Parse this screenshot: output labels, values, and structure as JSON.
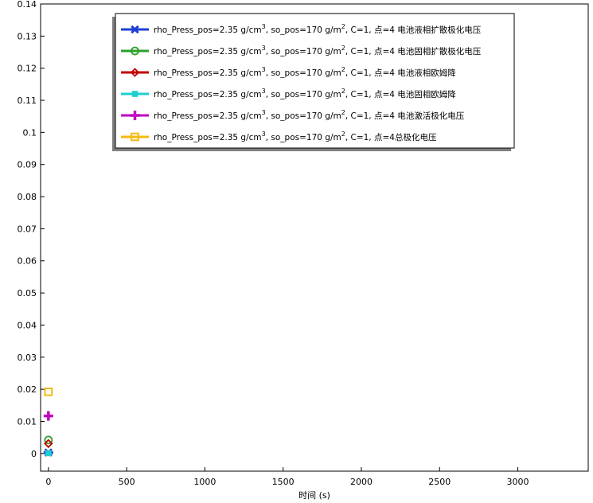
{
  "chart_data": {
    "type": "scatter",
    "title": "",
    "xlabel": "时间 (s)",
    "ylabel": "",
    "xlim": [
      -50,
      3450
    ],
    "ylim": [
      -0.0055,
      0.14
    ],
    "x_ticks": [
      0,
      500,
      1000,
      1500,
      2000,
      2500,
      3000
    ],
    "y_ticks": [
      0,
      0.01,
      0.02,
      0.03,
      0.04,
      0.05,
      0.06,
      0.07,
      0.08,
      0.09,
      0.1,
      0.11,
      0.12,
      0.13,
      0.14
    ],
    "grid": false,
    "legend_position": "top-center",
    "legend_prefix": "rho_Press_pos=2.35 g/cm",
    "legend_mid": ", so_pos=170 g/m",
    "series": [
      {
        "name": "C=1, 点=4 电池液相扩散极化电压",
        "color": "#1f3fd1",
        "marker": "asterisk",
        "points": [
          [
            0,
            0.0003
          ]
        ]
      },
      {
        "name": "C=1, 点=4 电池固相扩散极化电压",
        "color": "#2ca02c",
        "marker": "circle",
        "points": [
          [
            0,
            0.0042
          ]
        ]
      },
      {
        "name": "C=1, 点=4 电池液相欧姆降",
        "color": "#c00000",
        "marker": "diamond",
        "points": [
          [
            0,
            0.0031
          ]
        ]
      },
      {
        "name": "C=1, 点=4 电池固相欧姆降",
        "color": "#1ecfd1",
        "marker": "square-filled",
        "points": [
          [
            0,
            0.0001
          ]
        ]
      },
      {
        "name": "C=1, 点=4 电池激活极化电压",
        "color": "#c000c0",
        "marker": "plus",
        "points": [
          [
            0,
            0.0117
          ]
        ]
      },
      {
        "name": "C=1, 点=4总极化电压",
        "color": "#f5b90f",
        "marker": "square-open",
        "points": [
          [
            0,
            0.0192
          ]
        ]
      }
    ]
  }
}
